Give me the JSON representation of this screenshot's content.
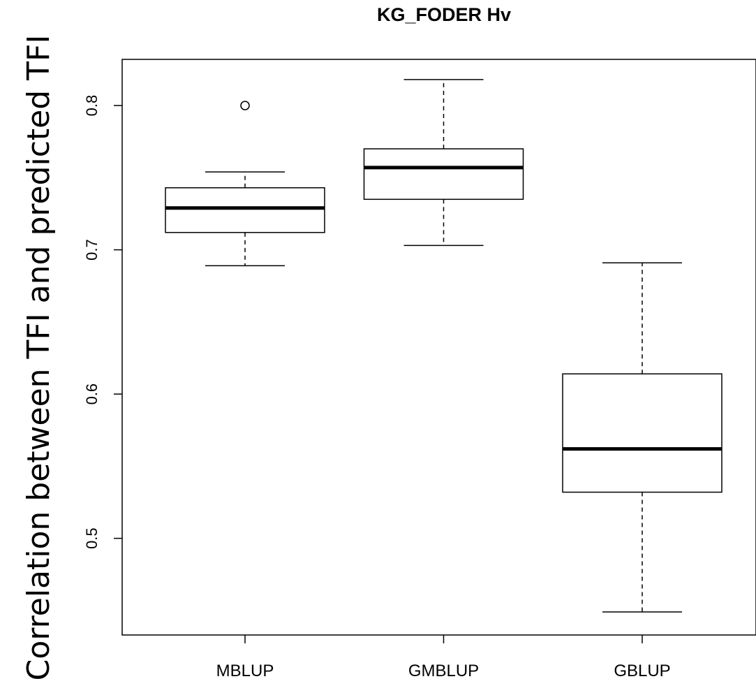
{
  "chart_data": {
    "type": "boxplot",
    "title": "KG_FODER Hv",
    "xlabel": "",
    "ylabel": "Correlation between TFI and predicted TFI",
    "ylim": [
      0.433,
      0.832
    ],
    "yticks": [
      0.5,
      0.6,
      0.7,
      0.8
    ],
    "ytick_labels": [
      "0.5",
      "0.6",
      "0.7",
      "0.8"
    ],
    "categories": [
      "MBLUP",
      "GMBLUP",
      "GBLUP"
    ],
    "grid": false,
    "legend": "none",
    "series": [
      {
        "category": "MBLUP",
        "whisker_low": 0.689,
        "q1": 0.712,
        "median": 0.729,
        "q3": 0.743,
        "whisker_high": 0.754,
        "outliers": [
          0.8
        ]
      },
      {
        "category": "GMBLUP",
        "whisker_low": 0.703,
        "q1": 0.735,
        "median": 0.757,
        "q3": 0.77,
        "whisker_high": 0.818,
        "outliers": []
      },
      {
        "category": "GBLUP",
        "whisker_low": 0.449,
        "q1": 0.532,
        "median": 0.562,
        "q3": 0.614,
        "whisker_high": 0.691,
        "outliers": []
      }
    ]
  }
}
